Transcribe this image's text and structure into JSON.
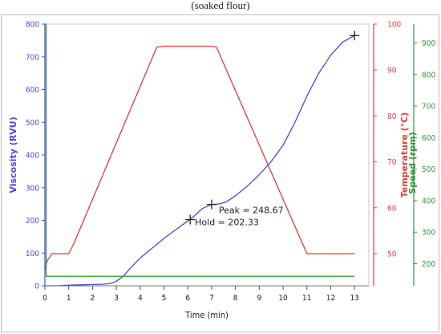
{
  "caption": "(soaked flour)",
  "chart_data": {
    "type": "line",
    "xlabel": "Time (min)",
    "x_ticks": [
      0,
      1,
      2,
      3,
      4,
      5,
      6,
      7,
      8,
      9,
      10,
      11,
      12,
      13
    ],
    "xlim": [
      0,
      13.6
    ],
    "axes": {
      "left": {
        "label": "Viscosity (RVU)",
        "color": "#4a4ad8",
        "lim": [
          0,
          800
        ],
        "ticks": [
          0,
          100,
          200,
          300,
          400,
          500,
          600,
          700,
          800
        ]
      },
      "right1": {
        "label": "Temperature (°C)",
        "color": "#e23b3b",
        "lim": [
          43,
          100
        ],
        "ticks": [
          50,
          60,
          70,
          80,
          90,
          100
        ]
      },
      "right2": {
        "label": "Speed (rpm)",
        "color": "#2e9a3a",
        "lim": [
          130,
          960
        ],
        "ticks": [
          200,
          300,
          400,
          500,
          600,
          700,
          800,
          900
        ]
      }
    },
    "series": [
      {
        "name": "Viscosity",
        "axis": "left",
        "color": "#4a4ad8",
        "x": [
          0,
          0.5,
          1,
          1.5,
          2,
          2.5,
          2.8,
          3.0,
          3.3,
          3.6,
          4.0,
          4.5,
          5.0,
          5.5,
          6.0,
          6.3,
          6.6,
          7.0,
          7.3,
          7.6,
          8.0,
          8.5,
          9.0,
          9.5,
          10.0,
          10.5,
          11.0,
          11.5,
          12.0,
          12.5,
          13.0
        ],
        "y": [
          0,
          0,
          2,
          3,
          4,
          5,
          8,
          14,
          30,
          55,
          85,
          115,
          145,
          172,
          198,
          215,
          236,
          248.7,
          250,
          256,
          275,
          305,
          340,
          380,
          430,
          500,
          580,
          650,
          705,
          745,
          765
        ]
      },
      {
        "name": "Temperature",
        "axis": "right1",
        "color": "#e23b3b",
        "x": [
          0,
          0.1,
          0.3,
          1.0,
          1.2,
          4.7,
          5.0,
          7.0,
          7.2,
          11.0,
          11.1,
          13.0
        ],
        "y": [
          46.5,
          48.5,
          50,
          50,
          52,
          95,
          95.2,
          95.2,
          95,
          50,
          50,
          50
        ]
      },
      {
        "name": "Speed",
        "axis": "right2",
        "color": "#2e9a3a",
        "x": [
          0,
          0.05,
          0.05,
          0.15,
          0.15,
          13.0
        ],
        "y": [
          960,
          960,
          160,
          160,
          160,
          160
        ]
      }
    ],
    "markers": [
      {
        "x": 6.1,
        "y": 202.33,
        "axis": "left"
      },
      {
        "x": 7.0,
        "y": 248.67,
        "axis": "left"
      },
      {
        "x": 13.0,
        "y": 765,
        "axis": "left"
      }
    ],
    "annotations": [
      {
        "text": "Peak = 248.67",
        "anchor_x": 7.3,
        "anchor_y": 222
      },
      {
        "text": "Hold = 202.33",
        "anchor_x": 6.3,
        "anchor_y": 185
      }
    ]
  }
}
